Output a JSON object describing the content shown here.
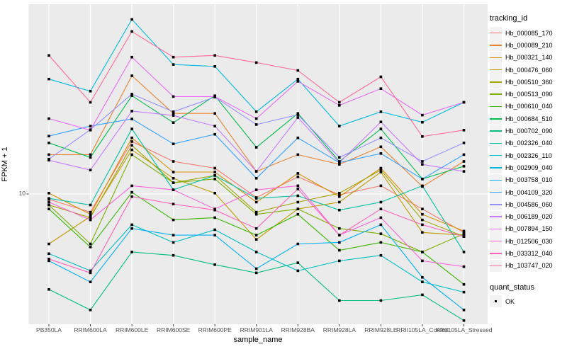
{
  "chart_data": {
    "type": "line",
    "title": "",
    "xlabel": "sample_name",
    "ylabel": "FPKM + 1",
    "y_scale": "log10",
    "y_tick_labels": [
      "10"
    ],
    "ylim_approx": [
      2,
      90
    ],
    "grid": "white major gridlines on gray panel",
    "legend_position": "right",
    "legend_title": "tracking_id",
    "legend2_title": "quant_status",
    "legend2_items": [
      {
        "label": "OK",
        "marker": "black-square"
      }
    ],
    "point_marker": "black-square",
    "panel_bg": "#EBEBEB",
    "grid_color": "#FFFFFF",
    "tick_label_color": "#4D4D4D",
    "categories": [
      "PB350LA",
      "RRIM600LA",
      "RRIM600LE",
      "RRIM600SE",
      "RRIM600PE",
      "RRIM901LA",
      "RRIM928BA",
      "RRIM928LA",
      "RRIM928LE",
      "RRII105LA_Control",
      "RRII105LA_Stressed"
    ],
    "series": [
      {
        "name": "Hb_000085_170",
        "color": "#F8766D",
        "values": [
          9.4,
          8.1,
          18.4,
          14.6,
          13.5,
          9.6,
          12.2,
          9.9,
          11.0,
          8.4,
          6.4
        ]
      },
      {
        "name": "Hb_000089_210",
        "color": "#EA8331",
        "values": [
          15.8,
          15.8,
          39.5,
          25.5,
          25.5,
          13.0,
          15.8,
          14.1,
          17.3,
          10.9,
          14.6
        ]
      },
      {
        "name": "Hb_000321_140",
        "color": "#D89000",
        "values": [
          10.1,
          7.9,
          19.2,
          12.9,
          12.9,
          9.1,
          12.7,
          9.7,
          13.5,
          7.9,
          6.5
        ]
      },
      {
        "name": "Hb_000476_060",
        "color": "#C09B00",
        "values": [
          5.6,
          7.7,
          16.7,
          12.0,
          10.1,
          5.9,
          8.4,
          9.1,
          12.9,
          6.4,
          6.2
        ]
      },
      {
        "name": "Hb_000510_360",
        "color": "#A3A500",
        "values": [
          8.8,
          7.6,
          17.6,
          11.4,
          12.4,
          8.1,
          9.1,
          10.1,
          13.2,
          7.4,
          6.1
        ]
      },
      {
        "name": "Hb_000513_090",
        "color": "#7CAE00",
        "values": [
          8.8,
          5.6,
          15.8,
          11.4,
          11.9,
          7.9,
          8.4,
          6.7,
          6.3,
          5.1,
          6.3
        ]
      },
      {
        "name": "Hb_000610_040",
        "color": "#39B600",
        "values": [
          8.4,
          5.4,
          10.2,
          7.4,
          7.6,
          6.2,
          7.9,
          5.2,
          5.7,
          5.1,
          3.5
        ]
      },
      {
        "name": "Hb_000684_510",
        "color": "#00BB4E",
        "values": [
          18.1,
          15.3,
          31.3,
          22.9,
          31.3,
          17.2,
          25.5,
          14.6,
          21.3,
          11.9,
          13.8
        ]
      },
      {
        "name": "Hb_000702_090",
        "color": "#00BF7D",
        "values": [
          3.3,
          2.6,
          5.1,
          4.9,
          4.4,
          4.0,
          4.5,
          2.9,
          2.9,
          3.1,
          2.3
        ]
      },
      {
        "name": "Hb_002326_040",
        "color": "#00C1A3",
        "values": [
          9.5,
          8.8,
          21.3,
          10.5,
          12.4,
          9.5,
          9.8,
          8.3,
          9.1,
          11.0,
          5.1
        ]
      },
      {
        "name": "Hb_002326_110",
        "color": "#00BFC4",
        "values": [
          5.0,
          4.1,
          7.0,
          5.7,
          6.6,
          5.1,
          4.1,
          4.6,
          4.9,
          3.6,
          3.2
        ]
      },
      {
        "name": "Hb_002909_040",
        "color": "#00BAE0",
        "values": [
          38,
          33,
          76,
          45,
          44,
          26,
          38,
          22,
          26,
          23,
          29
        ]
      },
      {
        "name": "Hb_003758_010",
        "color": "#00B0F6",
        "values": [
          4.6,
          3.6,
          6.7,
          6.2,
          6.2,
          4.2,
          5.6,
          5.7,
          7.0,
          3.8,
          2.6
        ]
      },
      {
        "name": "Hb_004109_320",
        "color": "#35A2FF",
        "values": [
          19.6,
          22.0,
          23.9,
          17.9,
          20.0,
          12.0,
          19.2,
          14.4,
          16.0,
          11.9,
          15.8
        ]
      },
      {
        "name": "Hb_004586_060",
        "color": "#9590FF",
        "values": [
          15.0,
          21.1,
          31.9,
          26.0,
          30.8,
          22.4,
          25.1,
          15.3,
          19.2,
          14.6,
          18.1
        ]
      },
      {
        "name": "Hb_006189_020",
        "color": "#C77CFF",
        "values": [
          14.8,
          13.2,
          26.2,
          24.9,
          22.0,
          13.0,
          24.3,
          14.4,
          23.1,
          14.1,
          13.0
        ]
      },
      {
        "name": "Hb_007894_150",
        "color": "#E76BF3",
        "values": [
          24,
          21,
          49,
          31,
          31,
          24,
          37,
          28,
          34,
          25,
          29
        ]
      },
      {
        "name": "Hb_012506_030",
        "color": "#FA62DB",
        "values": [
          9.1,
          7.4,
          11.0,
          10.5,
          8.4,
          10.5,
          11.0,
          6.2,
          7.6,
          4.6,
          4.3
        ]
      },
      {
        "name": "Hb_033312_040",
        "color": "#FF62BC",
        "values": [
          4.7,
          4.0,
          9.7,
          8.9,
          8.3,
          6.7,
          10.6,
          6.2,
          8.4,
          7.0,
          6.1
        ]
      },
      {
        "name": "Hb_103747_020",
        "color": "#FF6A98",
        "values": [
          50,
          29,
          66,
          49,
          50,
          46,
          42,
          29,
          39,
          19.5,
          21
        ]
      }
    ]
  }
}
